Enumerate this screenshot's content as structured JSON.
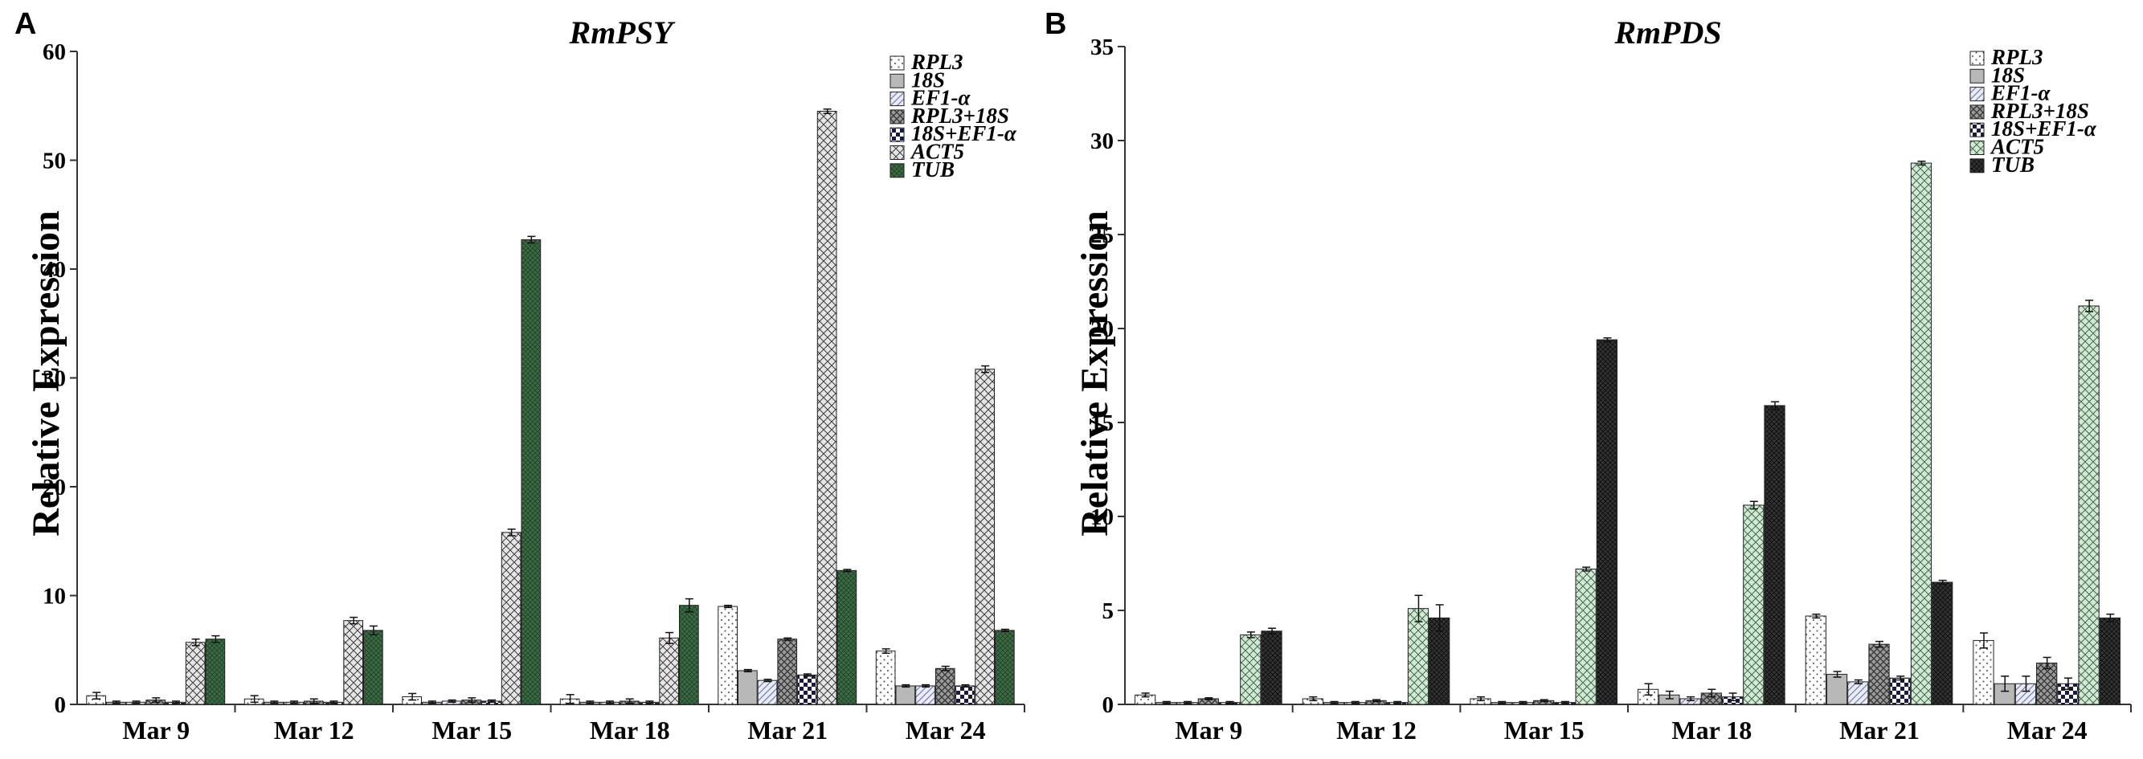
{
  "chart_data": [
    {
      "type": "bar",
      "panel_label": "A",
      "title": "RmPSY",
      "xlabel": "",
      "ylabel": "Relative Expression",
      "ylim": [
        0,
        60
      ],
      "yticks": [
        0,
        10,
        20,
        30,
        40,
        50,
        60
      ],
      "grid": false,
      "legend_position": "top-right",
      "categories": [
        "Mar 9",
        "Mar 12",
        "Mar 15",
        "Mar 18",
        "Mar 21",
        "Mar 24"
      ],
      "series": [
        {
          "name": "RPL3",
          "values": [
            0.8,
            0.5,
            0.7,
            0.5,
            9.0,
            4.9
          ],
          "errors": [
            0.3,
            0.3,
            0.3,
            0.4,
            0.1,
            0.2
          ]
        },
        {
          "name": "18S",
          "values": [
            0.2,
            0.2,
            0.2,
            0.2,
            3.1,
            1.7
          ],
          "errors": [
            0.1,
            0.1,
            0.1,
            0.1,
            0.1,
            0.1
          ]
        },
        {
          "name": "EF1-α",
          "values": [
            0.2,
            0.2,
            0.3,
            0.2,
            2.2,
            1.7
          ],
          "errors": [
            0.1,
            0.1,
            0.1,
            0.1,
            0.1,
            0.1
          ]
        },
        {
          "name": "RPL3+18S",
          "values": [
            0.4,
            0.3,
            0.4,
            0.3,
            6.0,
            3.3
          ],
          "errors": [
            0.2,
            0.2,
            0.2,
            0.2,
            0.1,
            0.2
          ]
        },
        {
          "name": "18S+EF1-α",
          "values": [
            0.2,
            0.2,
            0.3,
            0.2,
            2.7,
            1.7
          ],
          "errors": [
            0.1,
            0.1,
            0.1,
            0.1,
            0.1,
            0.1
          ]
        },
        {
          "name": "ACT5",
          "values": [
            5.7,
            7.7,
            15.8,
            6.1,
            54.5,
            30.8
          ],
          "errors": [
            0.3,
            0.3,
            0.3,
            0.5,
            0.2,
            0.3
          ]
        },
        {
          "name": "TUB",
          "values": [
            6.0,
            6.8,
            42.7,
            9.1,
            12.3,
            6.8
          ],
          "errors": [
            0.3,
            0.4,
            0.3,
            0.6,
            0.1,
            0.1
          ]
        }
      ],
      "fills": [
        "dots",
        "grey",
        "diag",
        "crosshatch-dark",
        "checker",
        "crosshatch-light",
        "dense-dark"
      ],
      "act5_color": "#e6e6e6",
      "tub_color": "#3d6b45"
    },
    {
      "type": "bar",
      "panel_label": "B",
      "title": "RmPDS",
      "xlabel": "",
      "ylabel": "Relative Expression",
      "ylim": [
        0,
        35
      ],
      "yticks": [
        0,
        5,
        10,
        15,
        20,
        25,
        30,
        35
      ],
      "grid": false,
      "legend_position": "top-right",
      "categories": [
        "Mar 9",
        "Mar 12",
        "Mar 15",
        "Mar 18",
        "Mar 21",
        "Mar 24"
      ],
      "series": [
        {
          "name": "RPL3",
          "values": [
            0.5,
            0.3,
            0.3,
            0.8,
            4.7,
            3.4
          ],
          "errors": [
            0.1,
            0.1,
            0.1,
            0.3,
            0.1,
            0.4
          ]
        },
        {
          "name": "18S",
          "values": [
            0.1,
            0.1,
            0.1,
            0.5,
            1.6,
            1.1
          ],
          "errors": [
            0.05,
            0.05,
            0.05,
            0.2,
            0.15,
            0.4
          ]
        },
        {
          "name": "EF1-α",
          "values": [
            0.1,
            0.1,
            0.1,
            0.3,
            1.2,
            1.1
          ],
          "errors": [
            0.05,
            0.05,
            0.05,
            0.1,
            0.1,
            0.4
          ]
        },
        {
          "name": "RPL3+18S",
          "values": [
            0.3,
            0.2,
            0.2,
            0.6,
            3.2,
            2.2
          ],
          "errors": [
            0.05,
            0.05,
            0.05,
            0.2,
            0.15,
            0.3
          ]
        },
        {
          "name": "18S+EF1-α",
          "values": [
            0.1,
            0.1,
            0.1,
            0.4,
            1.4,
            1.1
          ],
          "errors": [
            0.05,
            0.05,
            0.05,
            0.2,
            0.1,
            0.3
          ]
        },
        {
          "name": "ACT5",
          "values": [
            3.7,
            5.1,
            7.2,
            10.6,
            28.8,
            21.2
          ],
          "errors": [
            0.15,
            0.7,
            0.1,
            0.2,
            0.1,
            0.3
          ]
        },
        {
          "name": "TUB",
          "values": [
            3.9,
            4.6,
            19.4,
            15.9,
            6.5,
            4.6
          ],
          "errors": [
            0.15,
            0.7,
            0.1,
            0.2,
            0.1,
            0.2
          ]
        }
      ],
      "fills": [
        "dots",
        "grey",
        "diag",
        "crosshatch-dark",
        "checker",
        "crosshatch-light",
        "dense-dark"
      ],
      "act5_color": "#d2ead5",
      "tub_color": "#333333"
    }
  ]
}
